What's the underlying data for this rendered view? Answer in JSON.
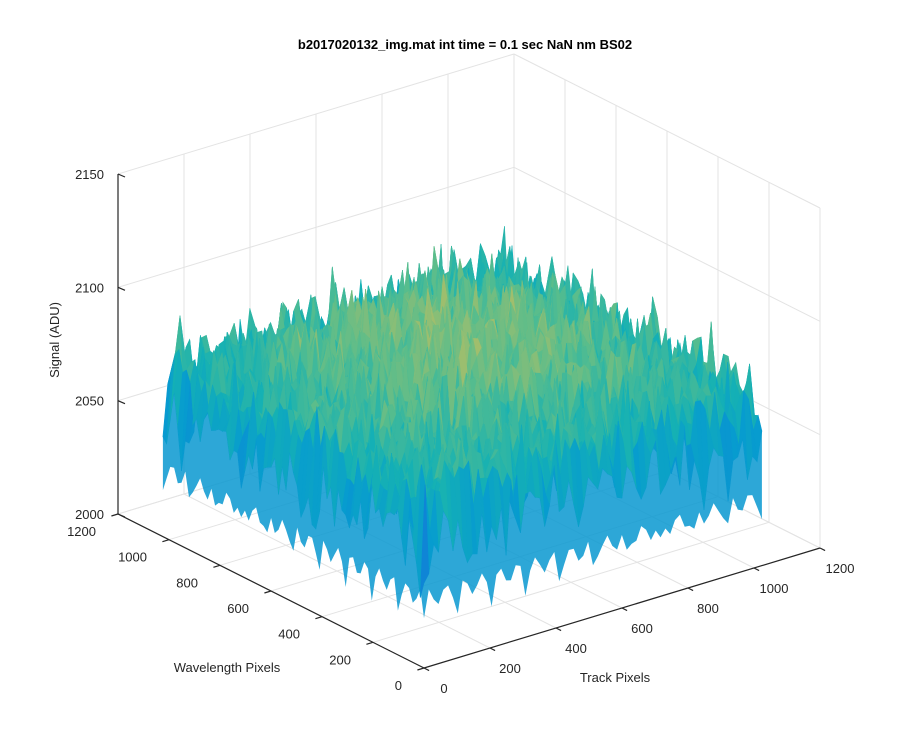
{
  "chart_data": {
    "type": "surface",
    "title": "b2017020132_img.mat int time = 0.1 sec  NaN nm BS02",
    "xlabel": "Track Pixels",
    "ylabel": "Wavelength Pixels",
    "zlabel": "Signal (ADU)",
    "xlim": [
      0,
      1200
    ],
    "ylim": [
      0,
      1200
    ],
    "zlim": [
      2000,
      2150
    ],
    "x_ticks": [
      "0",
      "200",
      "400",
      "600",
      "800",
      "1000",
      "1200"
    ],
    "y_ticks": [
      "0",
      "200",
      "400",
      "600",
      "800",
      "1000",
      "1200"
    ],
    "z_ticks": [
      "2000",
      "2050",
      "2100",
      "2150"
    ],
    "grid": true,
    "colormap": "parula",
    "surface": {
      "x_extent": [
        0,
        1024
      ],
      "y_extent": [
        0,
        1024
      ],
      "z_typical_range": [
        2030,
        2130
      ],
      "z_min_approx": 2010,
      "z_max_approx": 2145
    }
  }
}
